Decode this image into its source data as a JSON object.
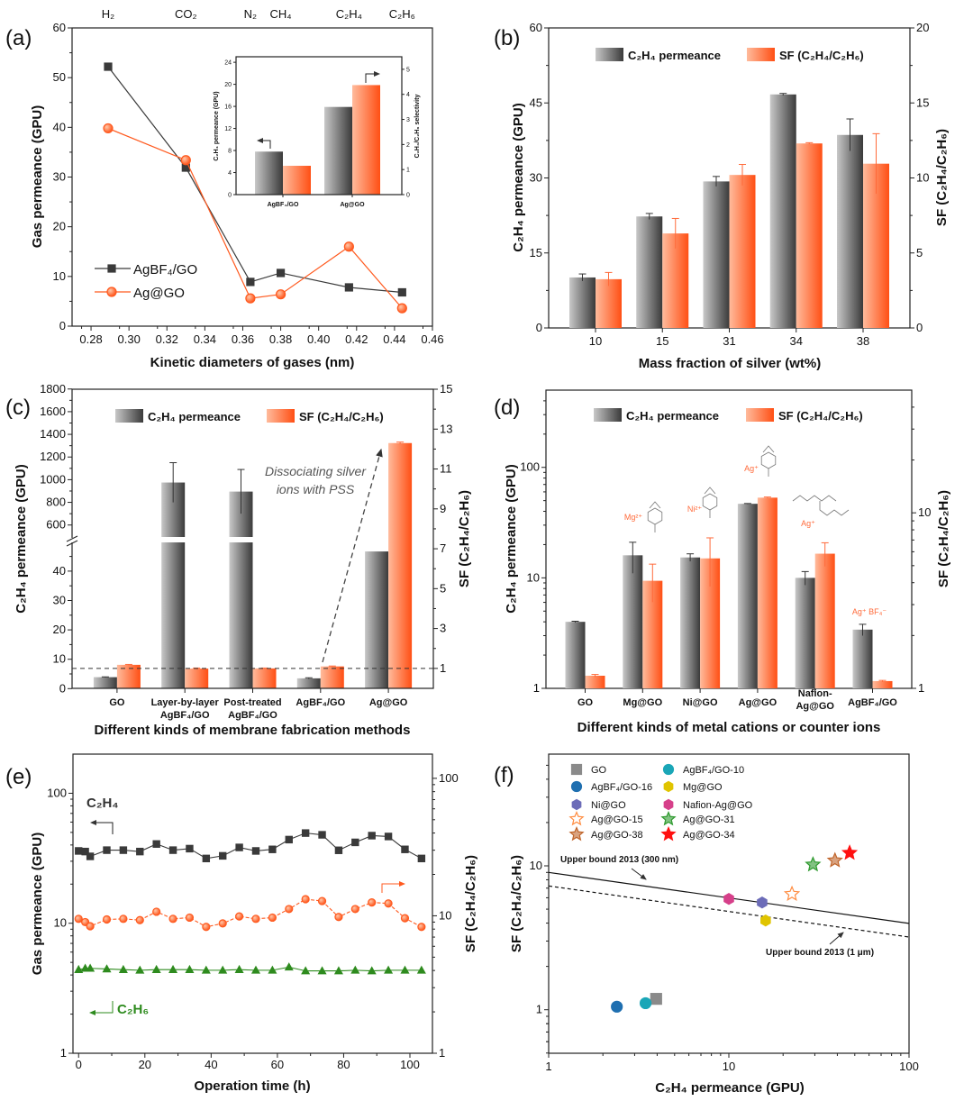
{
  "chart_data": [
    {
      "type": "line",
      "panel_label": "(a)",
      "xlabel": "Kinetic diameters of gases (nm)",
      "ylabel": "Gas permeance (GPU)",
      "xlim": [
        0.27,
        0.46
      ],
      "ylim": [
        0,
        60
      ],
      "xticks": [
        "0.28",
        "0.30",
        "0.32",
        "0.34",
        "0.36",
        "0.38",
        "0.40",
        "0.42",
        "0.44",
        "0.46"
      ],
      "yticks": [
        "0",
        "10",
        "20",
        "30",
        "40",
        "50",
        "60"
      ],
      "top_labels": [
        {
          "label": "H₂",
          "x": 0.289
        },
        {
          "label": "CO₂",
          "x": 0.33
        },
        {
          "label": "N₂",
          "x": 0.364
        },
        {
          "label": "CH₄",
          "x": 0.38
        },
        {
          "label": "C₂H₄",
          "x": 0.416
        },
        {
          "label": "C₂H₆",
          "x": 0.444
        }
      ],
      "legend": "bottom-left",
      "grid": false,
      "series": [
        {
          "name": "AgBF₄/GO",
          "color": "#3a3a3a",
          "marker": "square",
          "x": [
            0.289,
            0.33,
            0.364,
            0.38,
            0.416,
            0.444
          ],
          "y": [
            52.2,
            31.9,
            8.9,
            10.7,
            7.8,
            6.8
          ]
        },
        {
          "name": "Ag@GO",
          "color": "#ff5a1f",
          "marker": "circle",
          "x": [
            0.289,
            0.33,
            0.364,
            0.38,
            0.416,
            0.444
          ],
          "y": [
            39.8,
            33.4,
            5.6,
            6.4,
            16.0,
            3.6
          ]
        }
      ],
      "inset": {
        "type": "bar",
        "categories": [
          "AgBF₄/GO",
          "Ag@GO"
        ],
        "ylabel": "C₂H₄ permeance (GPU)",
        "y2label": "C₂H₄/C₂H₆ selectivity",
        "ylim": [
          0,
          25
        ],
        "y2lim": [
          0,
          5.5
        ],
        "yticks": [
          "0",
          "4",
          "8",
          "12",
          "16",
          "20",
          "24"
        ],
        "y2ticks": [
          "0",
          "1",
          "2",
          "3",
          "4",
          "5"
        ],
        "series": [
          {
            "axis": "left",
            "color": "#555555",
            "values": [
              7.8,
              15.9
            ]
          },
          {
            "axis": "right",
            "color": "#ff5a1f",
            "values": [
              1.15,
              4.37
            ]
          }
        ]
      }
    },
    {
      "type": "bar",
      "panel_label": "(b)",
      "xlabel": "Mass fraction of silver (wt%)",
      "ylabel": "C₂H₄ permeance (GPU)",
      "y2label": "SF (C₂H₄/C₂H₆)",
      "categories": [
        "10",
        "15",
        "31",
        "34",
        "38"
      ],
      "ylim": [
        0,
        60
      ],
      "y2lim": [
        0,
        20
      ],
      "yticks": [
        "0",
        "15",
        "30",
        "45",
        "60"
      ],
      "y2ticks": [
        "0",
        "5",
        "10",
        "15",
        "20"
      ],
      "legend": "top",
      "series": [
        {
          "name": "C₂H₄ permeance",
          "axis": "left",
          "color": "#555555",
          "values": [
            10.1,
            22.3,
            29.3,
            46.7,
            38.6
          ],
          "errors": [
            0.7,
            0.6,
            1.0,
            0.2,
            3.2
          ]
        },
        {
          "name": "SF (C₂H₄/C₂H₆)",
          "axis": "right",
          "color": "#ff5a1f",
          "values": [
            3.25,
            6.3,
            10.2,
            12.3,
            10.95
          ],
          "errors": [
            0.45,
            1.0,
            0.7,
            0.05,
            2.0
          ]
        }
      ]
    },
    {
      "type": "bar",
      "panel_label": "(c)",
      "xlabel": "Different kinds of membrane fabrication methods",
      "ylabel": "C₂H₄ permeance (GPU)",
      "y2label": "SF (C₂H₄/C₂H₆)",
      "categories": [
        [
          "GO"
        ],
        [
          "Layer-by-layer",
          "AgBF₄/GO"
        ],
        [
          "Post-treated",
          "AgBF₄/GO"
        ],
        [
          "AgBF₄/GO"
        ],
        [
          "Ag@GO"
        ]
      ],
      "ylim": [
        0,
        1800
      ],
      "axis_break": [
        48,
        500
      ],
      "y2lim": [
        0,
        15
      ],
      "yticks": [
        "0",
        "10",
        "20",
        "30",
        "40",
        "600",
        "800",
        "1000",
        "1200",
        "1400",
        "1600",
        "1800"
      ],
      "y2ticks": [
        "1",
        "3",
        "5",
        "7",
        "9",
        "11",
        "13",
        "15"
      ],
      "reference_line": {
        "axis": "right",
        "value": 1,
        "style": "dashed"
      },
      "annotation": {
        "lines": [
          "Dissociating silver",
          "ions with PSS"
        ],
        "from_category": "AgBF₄/GO",
        "to_category": "Ag@GO"
      },
      "legend": "top",
      "series": [
        {
          "name": "C₂H₄ permeance",
          "axis": "left",
          "color": "#555555",
          "values": [
            3.9,
            975,
            895,
            3.5,
            46.7
          ],
          "errors": [
            0.1,
            175,
            195,
            0.2,
            0
          ]
        },
        {
          "name": "SF (C₂H₄/C₂H₆)",
          "axis": "right",
          "color": "#ff5a1f",
          "values": [
            1.18,
            0.99,
            1.0,
            1.1,
            12.3
          ],
          "errors": [
            0.02,
            0.03,
            0.02,
            0.02,
            0.05
          ]
        }
      ]
    },
    {
      "type": "bar",
      "panel_label": "(d)",
      "xlabel": "Different kinds of metal cations or counter ions",
      "ylabel": "C₂H₄ permeance (GPU)",
      "y2label": "SF (C₂H₄/C₂H₆)",
      "yscale": "log",
      "categories": [
        [
          "GO"
        ],
        [
          "Mg@GO"
        ],
        [
          "Ni@GO"
        ],
        [
          "Ag@GO"
        ],
        [
          "Nafion-",
          "Ag@GO"
        ],
        [
          "AgBF₄/GO"
        ]
      ],
      "ylim": [
        1,
        500
      ],
      "y2lim": [
        1,
        50
      ],
      "yticks": [
        "1",
        "10",
        "100"
      ],
      "y2ticks": [
        "1",
        "10"
      ],
      "ion_labels": [
        "Mg²⁺",
        "Ni²⁺",
        "Ag⁺",
        "Ag⁺",
        "Ag⁺ BF₄⁻"
      ],
      "legend": "top",
      "series": [
        {
          "name": "C₂H₄ permeance",
          "axis": "left",
          "color": "#555555",
          "values": [
            4.0,
            16.0,
            15.3,
            46.8,
            10.0,
            3.4
          ],
          "errors": [
            0.05,
            5.0,
            1.2,
            0.3,
            1.4,
            0.4
          ]
        },
        {
          "name": "SF (C₂H₄/C₂H₆)",
          "axis": "right",
          "color": "#ff5a1f",
          "values": [
            1.18,
            4.1,
            5.5,
            12.2,
            5.85,
            1.1
          ],
          "errors": [
            0.02,
            1.0,
            1.7,
            0.1,
            0.9,
            0.01
          ]
        }
      ]
    },
    {
      "type": "line",
      "panel_label": "(e)",
      "xlabel": "Operation time (h)",
      "ylabel": "Gas permeance (GPU)",
      "y2label": "SF (C₂H₄/C₂H₆)",
      "yscale": "log",
      "xlim": [
        -1.7,
        106.8
      ],
      "ylim": [
        1,
        200
      ],
      "y2lim": [
        1,
        150
      ],
      "xticks": [
        "0",
        "20",
        "40",
        "60",
        "80",
        "100"
      ],
      "yticks": [
        "1",
        "10",
        "100"
      ],
      "y2ticks": [
        "1",
        "10",
        "100"
      ],
      "x": [
        0,
        2,
        3.5,
        8.5,
        13.5,
        18.5,
        23.5,
        28.5,
        33.5,
        38.5,
        43.5,
        48.5,
        53.5,
        58.5,
        63.5,
        68.5,
        73.5,
        78.5,
        83.5,
        88.5,
        93.5,
        98.5,
        103.5
      ],
      "series": [
        {
          "name": "C₂H₄",
          "axis": "left",
          "color": "#3a3a3a",
          "marker": "square",
          "values": [
            36,
            35.6,
            32.7,
            36.5,
            36.5,
            35.6,
            40.7,
            36.5,
            37.5,
            31.5,
            33,
            38.3,
            36,
            37,
            44,
            49.4,
            47.9,
            36.4,
            41.9,
            47.2,
            46.5,
            37,
            31.5
          ]
        },
        {
          "axis": "right",
          "color": "#ff5a1f",
          "marker": "circle",
          "values": [
            9.5,
            9.0,
            8.4,
            9.4,
            9.5,
            9.3,
            10.7,
            9.5,
            9.7,
            8.3,
            8.8,
            9.9,
            9.5,
            9.7,
            11.2,
            13.2,
            12.8,
            9.8,
            11.2,
            12.5,
            12.3,
            9.6,
            8.3
          ]
        },
        {
          "name": "C₂H₆",
          "axis": "left",
          "color": "#2e8b1e",
          "marker": "triangle",
          "values": [
            4.4,
            4.5,
            4.5,
            4.45,
            4.4,
            4.35,
            4.4,
            4.4,
            4.4,
            4.35,
            4.35,
            4.4,
            4.35,
            4.35,
            4.6,
            4.3,
            4.3,
            4.3,
            4.35,
            4.3,
            4.35,
            4.35,
            4.35
          ]
        }
      ]
    },
    {
      "type": "scatter",
      "panel_label": "(f)",
      "xlabel": "C₂H₄ permeance (GPU)",
      "ylabel": "SF (C₂H₄/C₂H₆)",
      "xscale": "log",
      "yscale": "log",
      "xlim": [
        1,
        100
      ],
      "ylim": [
        0.5,
        60
      ],
      "xticks": [
        "1",
        "10",
        "100"
      ],
      "yticks": [
        "1",
        "10"
      ],
      "legend": "top-left",
      "points": [
        {
          "name": "GO",
          "x": 3.95,
          "y": 1.19,
          "color": "#8a8a8a",
          "marker": "square",
          "fill": "filled"
        },
        {
          "name": "AgBF₄/GO-10",
          "x": 3.45,
          "y": 1.11,
          "color": "#1aa6b7",
          "marker": "circle",
          "fill": "filled"
        },
        {
          "name": "AgBF₄/GO-16",
          "x": 2.39,
          "y": 1.05,
          "color": "#1f6fb0",
          "marker": "circle",
          "fill": "filled"
        },
        {
          "name": "Mg@GO",
          "x": 16.0,
          "y": 4.17,
          "color": "#e0c400",
          "marker": "hexagon",
          "fill": "filled"
        },
        {
          "name": "Ni@GO",
          "x": 15.3,
          "y": 5.56,
          "color": "#6c6cb8",
          "marker": "hexagon",
          "fill": "filled"
        },
        {
          "name": "Nafion-Ag@GO",
          "x": 10.0,
          "y": 5.89,
          "color": "#d6408a",
          "marker": "hexagon",
          "fill": "filled"
        },
        {
          "name": "Ag@GO-15",
          "x": 22.4,
          "y": 6.37,
          "color": "#ff8c40",
          "marker": "star",
          "fill": "open"
        },
        {
          "name": "Ag@GO-31",
          "x": 29.3,
          "y": 10.2,
          "color": "#2e9a2e",
          "marker": "star",
          "fill": "half"
        },
        {
          "name": "Ag@GO-38",
          "x": 38.8,
          "y": 10.9,
          "color": "#c0642a",
          "marker": "star",
          "fill": "half"
        },
        {
          "name": "Ag@GO-34",
          "x": 46.8,
          "y": 12.3,
          "color": "#ff1010",
          "marker": "star",
          "fill": "filled"
        }
      ],
      "lines": [
        {
          "label": "Upper bound 2013 (300 nm)",
          "style": "solid",
          "x": [
            1,
            100
          ],
          "y": [
            9.0,
            3.98
          ]
        },
        {
          "label": "Upper bound 2013 (1 μm)",
          "style": "dashed",
          "x": [
            1,
            100
          ],
          "y": [
            7.25,
            3.2
          ]
        }
      ]
    }
  ]
}
